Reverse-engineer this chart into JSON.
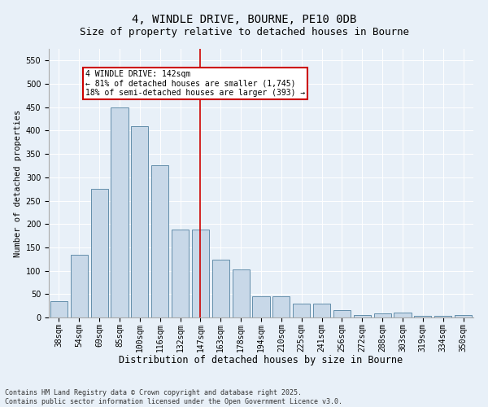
{
  "title": "4, WINDLE DRIVE, BOURNE, PE10 0DB",
  "subtitle": "Size of property relative to detached houses in Bourne",
  "xlabel": "Distribution of detached houses by size in Bourne",
  "ylabel": "Number of detached properties",
  "categories": [
    "38sqm",
    "54sqm",
    "69sqm",
    "85sqm",
    "100sqm",
    "116sqm",
    "132sqm",
    "147sqm",
    "163sqm",
    "178sqm",
    "194sqm",
    "210sqm",
    "225sqm",
    "241sqm",
    "256sqm",
    "272sqm",
    "288sqm",
    "303sqm",
    "319sqm",
    "334sqm",
    "350sqm"
  ],
  "values": [
    35,
    135,
    275,
    450,
    410,
    325,
    188,
    188,
    123,
    103,
    46,
    46,
    30,
    30,
    15,
    5,
    9,
    10,
    4,
    4,
    5
  ],
  "bar_color": "#c8d8e8",
  "bar_edge_color": "#5080a0",
  "vline_x_index": 7,
  "vline_color": "#cc0000",
  "annotation_text": "4 WINDLE DRIVE: 142sqm\n← 81% of detached houses are smaller (1,745)\n18% of semi-detached houses are larger (393) →",
  "annotation_box_color": "#ffffff",
  "annotation_box_edge": "#cc0000",
  "ylim": [
    0,
    575
  ],
  "yticks": [
    0,
    50,
    100,
    150,
    200,
    250,
    300,
    350,
    400,
    450,
    500,
    550
  ],
  "bg_color": "#e8f0f8",
  "footer": "Contains HM Land Registry data © Crown copyright and database right 2025.\nContains public sector information licensed under the Open Government Licence v3.0.",
  "title_fontsize": 10,
  "subtitle_fontsize": 9,
  "xlabel_fontsize": 8.5,
  "ylabel_fontsize": 7.5,
  "tick_fontsize": 7,
  "footer_fontsize": 6,
  "annot_fontsize": 7
}
